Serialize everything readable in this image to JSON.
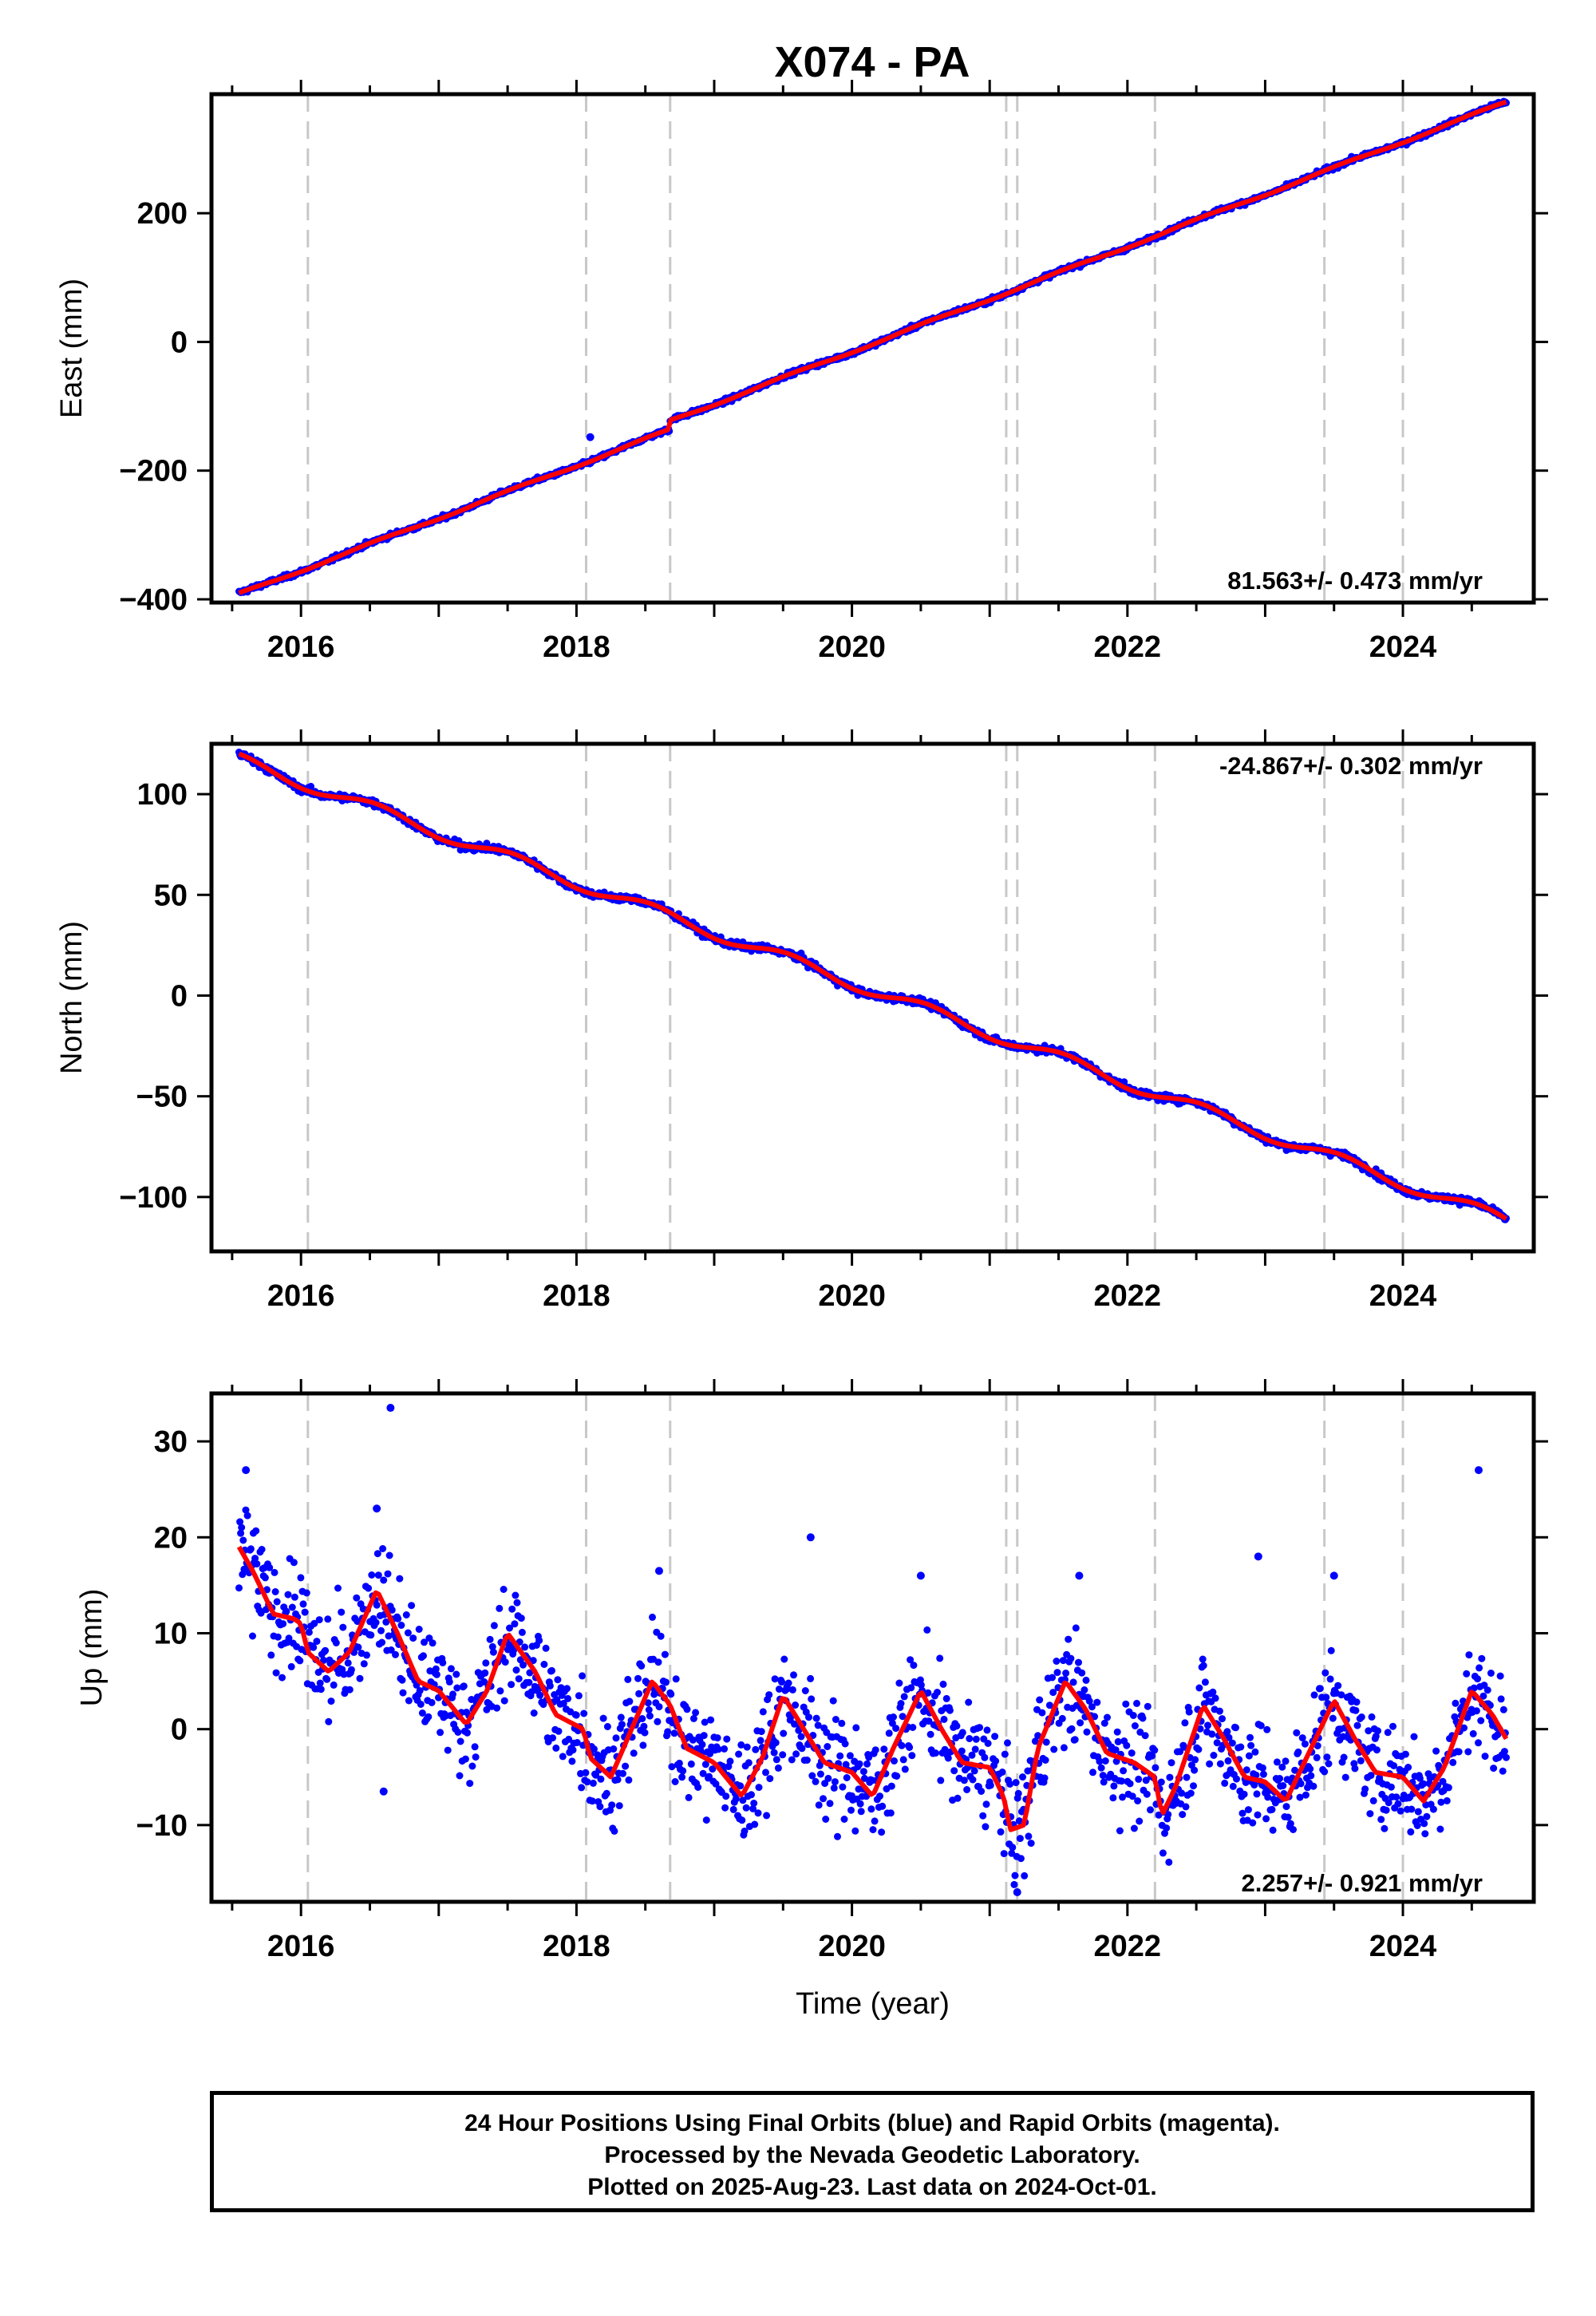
{
  "chart_data": [
    {
      "type": "scatter",
      "title": "X074 - PA",
      "ylabel": "East (mm)",
      "xlabel": "",
      "xlim": [
        2015.35,
        2024.95
      ],
      "ylim": [
        -405,
        385
      ],
      "x_ticks": [
        2016,
        2018,
        2020,
        2022,
        2024
      ],
      "y_ticks": [
        -400,
        -200,
        0,
        200
      ],
      "y_tick_labels": [
        "−400",
        "−200",
        "0",
        "200"
      ],
      "rate_text": "81.563+/- 0.473 mm/yr",
      "events": [
        2016.05,
        2018.07,
        2018.68,
        2021.12,
        2021.2,
        2022.2,
        2023.43,
        2024.0
      ],
      "time_range": [
        2015.55,
        2024.75
      ],
      "trend": {
        "start": -392,
        "slope": 81.563
      },
      "offsets": [
        {
          "t": 2018.68,
          "dy": 14
        }
      ],
      "seasonal_amp": 2,
      "noise": 2.5,
      "outliers": [
        {
          "x": 2018.1,
          "y": -148
        }
      ],
      "series": [
        {
          "role": "observations",
          "color": "#0000ff"
        },
        {
          "role": "model",
          "color": "#ff0000"
        }
      ],
      "grid": false
    },
    {
      "type": "scatter",
      "title": "",
      "ylabel": "North (mm)",
      "xlabel": "",
      "xlim": [
        2015.35,
        2024.95
      ],
      "ylim": [
        -127,
        125
      ],
      "x_ticks": [
        2016,
        2018,
        2020,
        2022,
        2024
      ],
      "y_ticks": [
        -100,
        -50,
        0,
        50,
        100
      ],
      "y_tick_labels": [
        "−100",
        "−50",
        "0",
        "50",
        "100"
      ],
      "rate_text": "-24.867+/- 0.302 mm/yr",
      "events": [
        2016.05,
        2018.07,
        2018.68,
        2021.12,
        2021.2,
        2022.2,
        2023.43,
        2024.0
      ],
      "time_range": [
        2015.55,
        2024.75
      ],
      "trend": {
        "start": 117,
        "slope": -24.867
      },
      "offsets": [],
      "seasonal_amp": 3,
      "noise": 1.3,
      "outliers": [],
      "series": [
        {
          "role": "observations",
          "color": "#0000ff"
        },
        {
          "role": "model",
          "color": "#ff0000"
        }
      ],
      "grid": false
    },
    {
      "type": "scatter",
      "title": "",
      "ylabel": "Up (mm)",
      "xlabel": "Time (year)",
      "xlim": [
        2015.35,
        2024.95
      ],
      "ylim": [
        -18,
        35
      ],
      "x_ticks": [
        2016,
        2018,
        2020,
        2022,
        2024
      ],
      "y_ticks": [
        -10,
        0,
        10,
        20,
        30
      ],
      "y_tick_labels": [
        "−10",
        "0",
        "10",
        "20",
        "30"
      ],
      "rate_text": "2.257+/- 0.921 mm/yr",
      "events": [
        2016.05,
        2018.07,
        2018.68,
        2021.12,
        2021.2,
        2022.2,
        2023.43,
        2024.0
      ],
      "time_range": [
        2015.55,
        2024.75
      ],
      "model_points": [
        [
          2015.55,
          19
        ],
        [
          2015.65,
          16.5
        ],
        [
          2015.8,
          12
        ],
        [
          2015.95,
          11.5
        ],
        [
          2016.0,
          11
        ],
        [
          2016.05,
          8
        ],
        [
          2016.2,
          6
        ],
        [
          2016.35,
          8
        ],
        [
          2016.55,
          14.5
        ],
        [
          2016.7,
          10
        ],
        [
          2016.85,
          5
        ],
        [
          2017.0,
          4
        ],
        [
          2017.2,
          0.5
        ],
        [
          2017.35,
          4
        ],
        [
          2017.5,
          10
        ],
        [
          2017.7,
          6
        ],
        [
          2017.85,
          1.5
        ],
        [
          2018.05,
          0
        ],
        [
          2018.1,
          -3
        ],
        [
          2018.25,
          -5
        ],
        [
          2018.4,
          0
        ],
        [
          2018.55,
          5
        ],
        [
          2018.68,
          2.5
        ],
        [
          2018.8,
          -2
        ],
        [
          2019.0,
          -3.5
        ],
        [
          2019.2,
          -7
        ],
        [
          2019.35,
          -3
        ],
        [
          2019.5,
          3.5
        ],
        [
          2019.65,
          0
        ],
        [
          2019.8,
          -3.5
        ],
        [
          2020.0,
          -4.5
        ],
        [
          2020.15,
          -7
        ],
        [
          2020.3,
          -2
        ],
        [
          2020.5,
          4
        ],
        [
          2020.65,
          0
        ],
        [
          2020.8,
          -3.5
        ],
        [
          2021.0,
          -4
        ],
        [
          2021.1,
          -7
        ],
        [
          2021.15,
          -10.5
        ],
        [
          2021.25,
          -10
        ],
        [
          2021.35,
          -2
        ],
        [
          2021.55,
          5
        ],
        [
          2021.7,
          2
        ],
        [
          2021.85,
          -2.5
        ],
        [
          2022.05,
          -3.5
        ],
        [
          2022.2,
          -5
        ],
        [
          2022.25,
          -9
        ],
        [
          2022.35,
          -6
        ],
        [
          2022.55,
          2.5
        ],
        [
          2022.7,
          -1
        ],
        [
          2022.85,
          -5
        ],
        [
          2023.0,
          -5.5
        ],
        [
          2023.15,
          -7.5
        ],
        [
          2023.3,
          -3
        ],
        [
          2023.5,
          3
        ],
        [
          2023.65,
          -1
        ],
        [
          2023.8,
          -4.5
        ],
        [
          2024.0,
          -5
        ],
        [
          2024.15,
          -7.5
        ],
        [
          2024.3,
          -4
        ],
        [
          2024.5,
          4
        ],
        [
          2024.65,
          1.5
        ],
        [
          2024.75,
          -1
        ]
      ],
      "noise": 4,
      "outliers": [
        {
          "x": 2016.65,
          "y": 33.5
        },
        {
          "x": 2015.6,
          "y": 27
        },
        {
          "x": 2024.55,
          "y": 27
        },
        {
          "x": 2016.55,
          "y": 23
        },
        {
          "x": 2019.7,
          "y": 20
        },
        {
          "x": 2022.95,
          "y": 18
        },
        {
          "x": 2016.6,
          "y": -6.5
        },
        {
          "x": 2021.2,
          "y": -17
        },
        {
          "x": 2018.6,
          "y": 16.5
        },
        {
          "x": 2021.65,
          "y": 16
        },
        {
          "x": 2023.5,
          "y": 16
        },
        {
          "x": 2020.5,
          "y": 16
        }
      ],
      "series": [
        {
          "role": "observations",
          "color": "#0000ff"
        },
        {
          "role": "model",
          "color": "#ff0000"
        }
      ],
      "grid": false
    }
  ],
  "footer": {
    "line1": "24 Hour Positions Using Final Orbits (blue) and Rapid Orbits (magenta).",
    "line2": "Processed by the Nevada Geodetic Laboratory.",
    "line3": "Plotted on 2025-Aug-23. Last data on 2024-Oct-01."
  }
}
